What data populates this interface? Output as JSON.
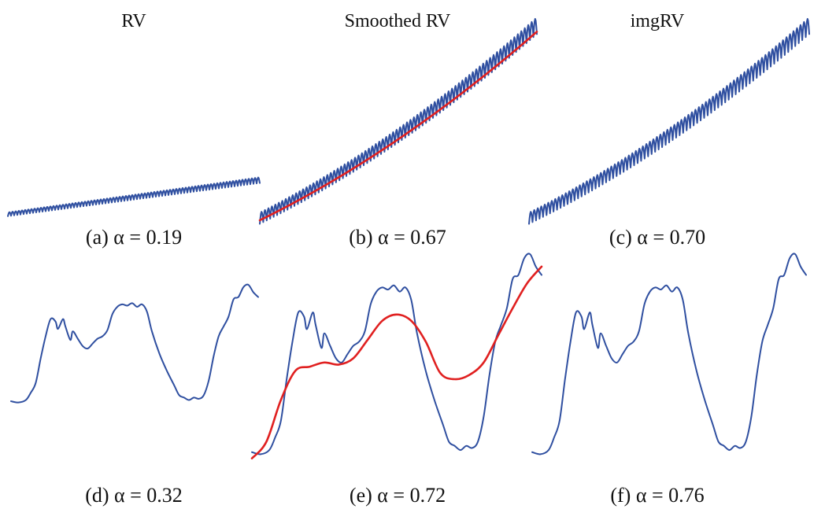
{
  "column_titles": [
    "RV",
    "Smoothed RV",
    "imgRV"
  ],
  "colors": {
    "raw_series": "#2f4fa0",
    "smoothed_series": "#e02020"
  },
  "chart_data": [
    {
      "id": "a",
      "type": "line",
      "caption": "(a) α = 0.19",
      "series": [
        {
          "role": "raw",
          "trend": "linear-rising",
          "start": 0.03,
          "end": 0.2,
          "oscillation_cycles": 40,
          "oscillation_amplitude": 0.012
        }
      ],
      "ylim": [
        0,
        1
      ]
    },
    {
      "id": "b",
      "type": "line",
      "caption": "(b) α = 0.67",
      "series": [
        {
          "role": "raw",
          "trend": "convex-rising",
          "start": 0.01,
          "end": 0.97,
          "oscillation_cycles": 40,
          "oscillation_amplitude": 0.035
        },
        {
          "role": "smoothed",
          "trend": "convex-rising",
          "start": 0.0,
          "end": 0.94,
          "oscillation_cycles": 0,
          "oscillation_amplitude": 0
        }
      ],
      "ylim": [
        0,
        1
      ]
    },
    {
      "id": "c",
      "type": "line",
      "caption": "(c) α = 0.70",
      "series": [
        {
          "role": "raw",
          "trend": "convex-rising",
          "start": 0.01,
          "end": 0.97,
          "oscillation_cycles": 40,
          "oscillation_amplitude": 0.035
        }
      ],
      "ylim": [
        0,
        1
      ]
    },
    {
      "id": "d",
      "type": "line",
      "caption": "(d) α = 0.32",
      "series": [
        {
          "role": "raw",
          "x": [
            0,
            0.03,
            0.06,
            0.08,
            0.1,
            0.12,
            0.14,
            0.16,
            0.18,
            0.19,
            0.21,
            0.22,
            0.24,
            0.25,
            0.27,
            0.29,
            0.31,
            0.33,
            0.35,
            0.37,
            0.39,
            0.41,
            0.43,
            0.45,
            0.47,
            0.49,
            0.51,
            0.53,
            0.55,
            0.57,
            0.6,
            0.63,
            0.66,
            0.68,
            0.7,
            0.72,
            0.74,
            0.76,
            0.78,
            0.8,
            0.82,
            0.84,
            0.86,
            0.88,
            0.9,
            0.92,
            0.94,
            0.96,
            0.98,
            1.0
          ],
          "y": [
            0.05,
            0.04,
            0.06,
            0.12,
            0.2,
            0.4,
            0.58,
            0.72,
            0.7,
            0.64,
            0.72,
            0.66,
            0.55,
            0.62,
            0.56,
            0.5,
            0.48,
            0.52,
            0.56,
            0.58,
            0.63,
            0.76,
            0.82,
            0.84,
            0.83,
            0.85,
            0.82,
            0.84,
            0.78,
            0.62,
            0.44,
            0.3,
            0.18,
            0.1,
            0.08,
            0.06,
            0.08,
            0.07,
            0.1,
            0.22,
            0.42,
            0.58,
            0.66,
            0.74,
            0.88,
            0.9,
            0.98,
            1.0,
            0.94,
            0.9
          ]
        }
      ],
      "ylim": [
        -0.45,
        1.25
      ]
    },
    {
      "id": "e",
      "type": "line",
      "caption": "(e) α = 0.72",
      "series": [
        {
          "role": "raw",
          "x": [
            0,
            0.03,
            0.06,
            0.08,
            0.1,
            0.12,
            0.14,
            0.16,
            0.18,
            0.19,
            0.21,
            0.22,
            0.24,
            0.25,
            0.27,
            0.29,
            0.31,
            0.33,
            0.35,
            0.37,
            0.39,
            0.41,
            0.43,
            0.45,
            0.47,
            0.49,
            0.51,
            0.53,
            0.55,
            0.57,
            0.6,
            0.63,
            0.66,
            0.68,
            0.7,
            0.72,
            0.74,
            0.76,
            0.78,
            0.8,
            0.82,
            0.84,
            0.86,
            0.88,
            0.9,
            0.92,
            0.94,
            0.96,
            0.98,
            1.0
          ],
          "y": [
            0.05,
            0.04,
            0.06,
            0.12,
            0.2,
            0.4,
            0.58,
            0.72,
            0.7,
            0.64,
            0.72,
            0.66,
            0.55,
            0.62,
            0.56,
            0.5,
            0.48,
            0.52,
            0.56,
            0.58,
            0.63,
            0.76,
            0.82,
            0.84,
            0.83,
            0.85,
            0.82,
            0.84,
            0.78,
            0.62,
            0.44,
            0.3,
            0.18,
            0.1,
            0.08,
            0.06,
            0.08,
            0.07,
            0.1,
            0.22,
            0.42,
            0.58,
            0.66,
            0.74,
            0.88,
            0.9,
            0.98,
            1.0,
            0.94,
            0.9
          ]
        },
        {
          "role": "smoothed",
          "x": [
            0,
            0.05,
            0.1,
            0.15,
            0.2,
            0.25,
            0.3,
            0.35,
            0.4,
            0.45,
            0.5,
            0.55,
            0.6,
            0.65,
            0.7,
            0.75,
            0.8,
            0.85,
            0.9,
            0.95,
            1.0
          ],
          "y": [
            0.02,
            0.1,
            0.3,
            0.44,
            0.46,
            0.48,
            0.47,
            0.5,
            0.59,
            0.68,
            0.71,
            0.68,
            0.58,
            0.43,
            0.4,
            0.42,
            0.48,
            0.61,
            0.74,
            0.86,
            0.94
          ]
        }
      ],
      "ylim": [
        0,
        1
      ]
    },
    {
      "id": "f",
      "type": "line",
      "caption": "(f) α = 0.76",
      "series": [
        {
          "role": "raw",
          "x": [
            0,
            0.03,
            0.06,
            0.08,
            0.1,
            0.12,
            0.14,
            0.16,
            0.18,
            0.19,
            0.21,
            0.22,
            0.24,
            0.25,
            0.27,
            0.29,
            0.31,
            0.33,
            0.35,
            0.37,
            0.39,
            0.41,
            0.43,
            0.45,
            0.47,
            0.49,
            0.51,
            0.53,
            0.55,
            0.57,
            0.6,
            0.63,
            0.66,
            0.68,
            0.7,
            0.72,
            0.74,
            0.76,
            0.78,
            0.8,
            0.82,
            0.84,
            0.86,
            0.88,
            0.9,
            0.92,
            0.94,
            0.96,
            0.98,
            1.0
          ],
          "y": [
            0.05,
            0.04,
            0.06,
            0.12,
            0.2,
            0.4,
            0.58,
            0.72,
            0.7,
            0.64,
            0.72,
            0.66,
            0.55,
            0.62,
            0.56,
            0.5,
            0.48,
            0.52,
            0.56,
            0.58,
            0.63,
            0.76,
            0.82,
            0.84,
            0.83,
            0.85,
            0.82,
            0.84,
            0.78,
            0.62,
            0.44,
            0.3,
            0.18,
            0.1,
            0.08,
            0.06,
            0.08,
            0.07,
            0.1,
            0.22,
            0.42,
            0.58,
            0.66,
            0.74,
            0.88,
            0.9,
            0.98,
            1.0,
            0.94,
            0.9
          ]
        }
      ],
      "ylim": [
        0,
        1
      ]
    }
  ]
}
